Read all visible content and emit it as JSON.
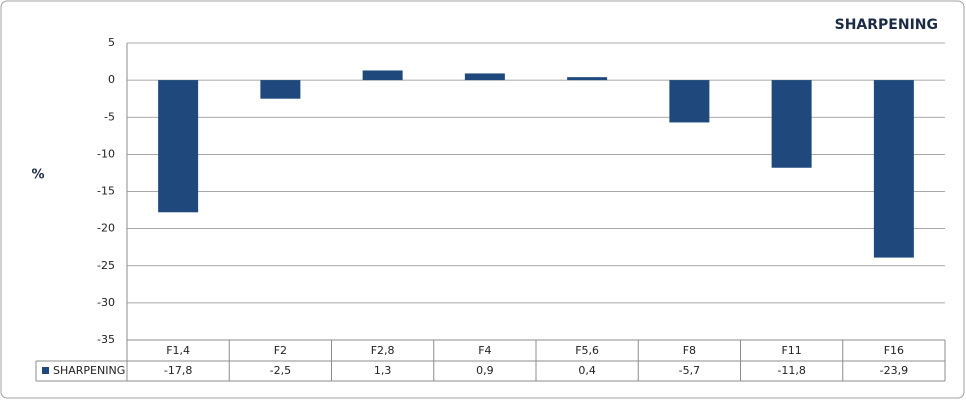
{
  "chart_data": {
    "type": "bar",
    "title": "SHARPENING",
    "y_label": "%",
    "categories": [
      "F1,4",
      "F2",
      "F2,8",
      "F4",
      "F5,6",
      "F8",
      "F11",
      "F16"
    ],
    "series": [
      {
        "name": "SHARPENING",
        "color": "#1f497d",
        "values": [
          -17.8,
          -2.5,
          1.3,
          0.9,
          0.4,
          -5.7,
          -11.8,
          -23.9
        ],
        "value_labels": [
          "-17,8",
          "-2,5",
          "1,3",
          "0,9",
          "0,4",
          "-5,7",
          "-11,8",
          "-23,9"
        ]
      }
    ],
    "ylim": [
      -35,
      5
    ],
    "yticks": [
      -35,
      -30,
      -25,
      -20,
      -15,
      -10,
      -5,
      0,
      5
    ],
    "grid": true,
    "data_table": true
  }
}
